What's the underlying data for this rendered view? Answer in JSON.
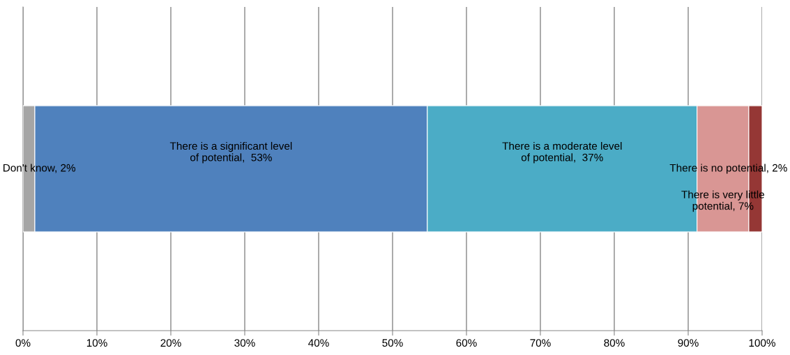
{
  "chart_data": {
    "type": "bar",
    "orientation": "horizontal",
    "stacked": true,
    "categories": [
      null
    ],
    "series": [
      {
        "name": "Don't know,",
        "color": "#a5a5a5",
        "values": [
          1.6
        ],
        "value_labels": [
          "2%"
        ]
      },
      {
        "name": "There is a significant level\nof potential,",
        "color": "#4f81bd",
        "values": [
          53.1
        ],
        "value_labels": [
          " 53%"
        ]
      },
      {
        "name": "There is a moderate level\nof potential,",
        "color": "#4bacc6",
        "values": [
          36.5
        ],
        "value_labels": [
          " 37%"
        ]
      },
      {
        "name": "There is very little\npotential,",
        "color": "#d99694",
        "values": [
          7.0
        ],
        "value_labels": [
          "7%"
        ]
      },
      {
        "name": "There is no potential,",
        "color": "#953735",
        "values": [
          1.8
        ],
        "value_labels": [
          "2%"
        ]
      }
    ],
    "xlim": [
      0,
      100
    ],
    "xticks": [
      {
        "value": 0,
        "label": "0%"
      },
      {
        "value": 10,
        "label": "10%"
      },
      {
        "value": 20,
        "label": "20%"
      },
      {
        "value": 30,
        "label": "30%"
      },
      {
        "value": 40,
        "label": "40%"
      },
      {
        "value": 50,
        "label": "50%"
      },
      {
        "value": 60,
        "label": "60%"
      },
      {
        "value": 70,
        "label": "70%"
      },
      {
        "value": 80,
        "label": "80%"
      },
      {
        "value": 90,
        "label": "90%"
      },
      {
        "value": 100,
        "label": "100%"
      }
    ],
    "grid": "x",
    "legend": false,
    "tick_labels": "x"
  }
}
